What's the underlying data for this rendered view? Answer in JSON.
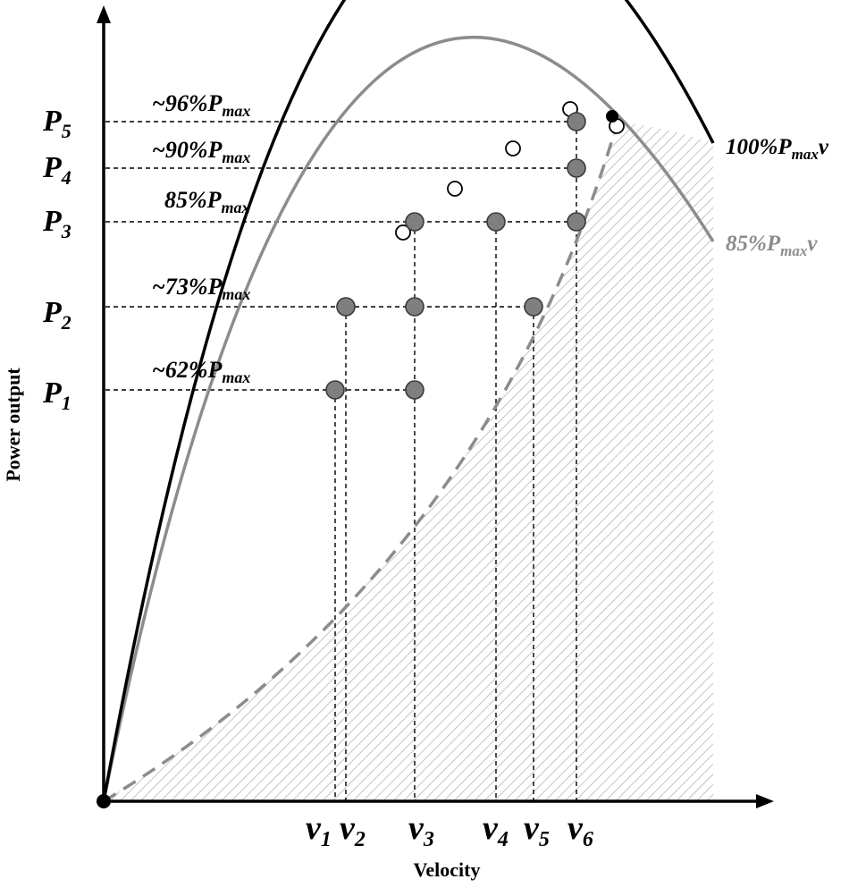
{
  "axes": {
    "x_label": "Velocity",
    "y_label": "Power output"
  },
  "y_levels": [
    {
      "base": "P",
      "sub": "1"
    },
    {
      "base": "P",
      "sub": "2"
    },
    {
      "base": "P",
      "sub": "3"
    },
    {
      "base": "P",
      "sub": "4"
    },
    {
      "base": "P",
      "sub": "5"
    }
  ],
  "x_levels": [
    {
      "base": "v",
      "sub": "1"
    },
    {
      "base": "v",
      "sub": "2"
    },
    {
      "base": "v",
      "sub": "3"
    },
    {
      "base": "v",
      "sub": "4"
    },
    {
      "base": "v",
      "sub": "5"
    },
    {
      "base": "v",
      "sub": "6"
    }
  ],
  "percent_labels": [
    {
      "prefix": "~96%P",
      "sub": "max"
    },
    {
      "prefix": "~90%P",
      "sub": "max"
    },
    {
      "prefix": "85%P",
      "sub": "max"
    },
    {
      "prefix": "~73%P",
      "sub": "max"
    },
    {
      "prefix": "~62%P",
      "sub": "max"
    }
  ],
  "curve_labels": {
    "full": {
      "prefix": "100%P",
      "sub": "max",
      "suffix": "v"
    },
    "reduced": {
      "prefix": "85%P",
      "sub": "max",
      "suffix": "v"
    }
  },
  "colors": {
    "full_curve": "#000000",
    "reduced_curve": "#8c8c8c",
    "point_fill": "#7f7f7f",
    "hatch": "#b5b5b5"
  }
}
